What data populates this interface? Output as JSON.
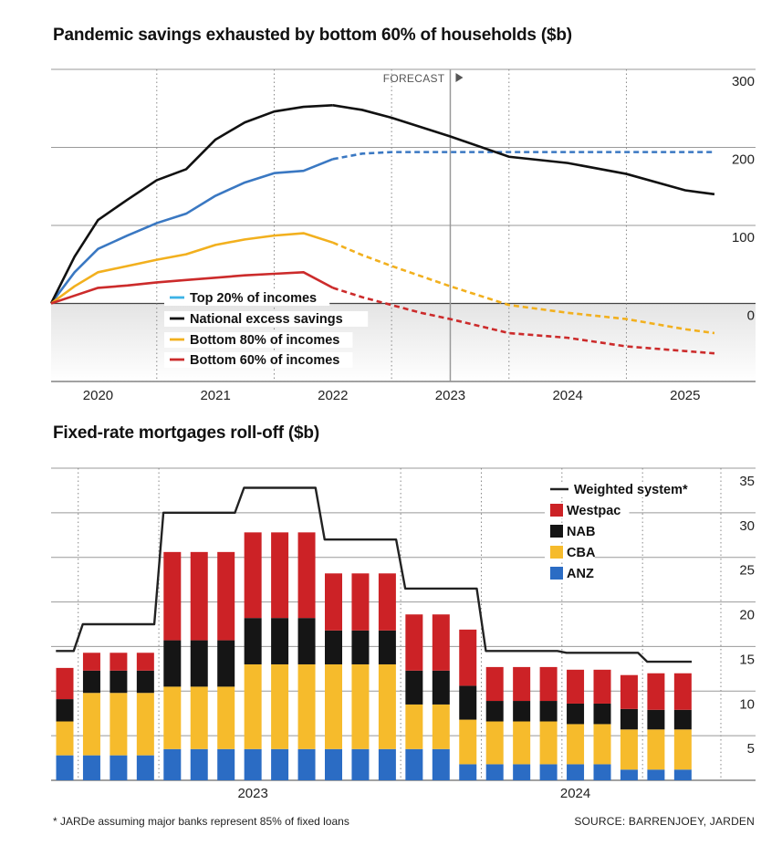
{
  "chart_data": [
    {
      "type": "line",
      "title": "Pandemic savings exhausted by bottom 60% of households ($b)",
      "xlabel": "",
      "ylabel": "",
      "x_ticks": [
        "2020",
        "2021",
        "2022",
        "2023",
        "2024",
        "2025"
      ],
      "y_ticks": [
        "300",
        "200",
        "100",
        "0"
      ],
      "ylim": [
        -100,
        300
      ],
      "xlim": [
        2019.6,
        2025.6
      ],
      "forecast_label": "FORECAST",
      "forecast_start": 2023.0,
      "grid": true,
      "legend_position": "bottom-left",
      "series": [
        {
          "name": "Top 20% of incomes",
          "color": "#3a78c2",
          "points": [
            [
              2019.6,
              0
            ],
            [
              2019.8,
              40
            ],
            [
              2020.0,
              70
            ],
            [
              2020.25,
              87
            ],
            [
              2020.5,
              103
            ],
            [
              2020.75,
              115
            ],
            [
              2021.0,
              138
            ],
            [
              2021.25,
              155
            ],
            [
              2021.5,
              167
            ],
            [
              2021.75,
              170
            ],
            [
              2022.0,
              185
            ],
            [
              2022.25,
              192
            ],
            [
              2022.5,
              194
            ],
            [
              2022.75,
              194
            ],
            [
              2023.0,
              194
            ],
            [
              2023.5,
              194
            ],
            [
              2024.0,
              194
            ],
            [
              2024.5,
              194
            ],
            [
              2025.0,
              194
            ],
            [
              2025.25,
              194
            ]
          ],
          "forecast_from_index": 10
        },
        {
          "name": "National excess savings",
          "color": "#111111",
          "points": [
            [
              2019.6,
              0
            ],
            [
              2019.8,
              60
            ],
            [
              2020.0,
              107
            ],
            [
              2020.25,
              133
            ],
            [
              2020.5,
              158
            ],
            [
              2020.75,
              172
            ],
            [
              2021.0,
              210
            ],
            [
              2021.25,
              232
            ],
            [
              2021.5,
              246
            ],
            [
              2021.75,
              252
            ],
            [
              2022.0,
              254
            ],
            [
              2022.25,
              248
            ],
            [
              2022.5,
              238
            ],
            [
              2022.75,
              226
            ],
            [
              2023.0,
              214
            ],
            [
              2023.5,
              188
            ],
            [
              2024.0,
              180
            ],
            [
              2024.5,
              166
            ],
            [
              2025.0,
              145
            ],
            [
              2025.25,
              140
            ]
          ],
          "forecast_from_index": 10
        },
        {
          "name": "Bottom 80% of incomes",
          "color": "#f2b01e",
          "points": [
            [
              2019.6,
              0
            ],
            [
              2019.8,
              22
            ],
            [
              2020.0,
              40
            ],
            [
              2020.25,
              48
            ],
            [
              2020.5,
              56
            ],
            [
              2020.75,
              63
            ],
            [
              2021.0,
              75
            ],
            [
              2021.25,
              82
            ],
            [
              2021.5,
              87
            ],
            [
              2021.75,
              90
            ],
            [
              2022.0,
              78
            ],
            [
              2022.25,
              62
            ],
            [
              2022.5,
              48
            ],
            [
              2022.75,
              35
            ],
            [
              2023.0,
              22
            ],
            [
              2023.5,
              -2
            ],
            [
              2024.0,
              -12
            ],
            [
              2024.5,
              -20
            ],
            [
              2025.0,
              -33
            ],
            [
              2025.25,
              -38
            ]
          ],
          "forecast_from_index": 10
        },
        {
          "name": "Bottom 60% of incomes",
          "color": "#cc2b2b",
          "points": [
            [
              2019.6,
              0
            ],
            [
              2019.8,
              10
            ],
            [
              2020.0,
              20
            ],
            [
              2020.25,
              23
            ],
            [
              2020.5,
              27
            ],
            [
              2020.75,
              30
            ],
            [
              2021.0,
              33
            ],
            [
              2021.25,
              36
            ],
            [
              2021.5,
              38
            ],
            [
              2021.75,
              40
            ],
            [
              2022.0,
              20
            ],
            [
              2022.25,
              8
            ],
            [
              2022.5,
              -2
            ],
            [
              2022.75,
              -12
            ],
            [
              2023.0,
              -20
            ],
            [
              2023.5,
              -38
            ],
            [
              2024.0,
              -44
            ],
            [
              2024.5,
              -55
            ],
            [
              2025.0,
              -61
            ],
            [
              2025.25,
              -64
            ]
          ],
          "forecast_from_index": 10
        }
      ]
    },
    {
      "type": "bar",
      "stacked": true,
      "title": "Fixed-rate mortgages roll-off ($b)",
      "xlabel": "",
      "ylabel": "",
      "x_group_labels": [
        "2023",
        "2024"
      ],
      "y_ticks": [
        "35",
        "30",
        "25",
        "20",
        "15",
        "10",
        "5"
      ],
      "ylim": [
        0,
        35
      ],
      "grid": true,
      "legend_position": "top-right",
      "categories": [
        "2022-10",
        "2022-11",
        "2022-12",
        "2023-01",
        "2023-02",
        "2023-03",
        "2023-04",
        "2023-05",
        "2023-06",
        "2023-07",
        "2023-08",
        "2023-09",
        "2023-10",
        "2023-11",
        "2023-12",
        "2024-01",
        "2024-02",
        "2024-03",
        "2024-04",
        "2024-05",
        "2024-06",
        "2024-07",
        "2024-08",
        "2024-09"
      ],
      "series": [
        {
          "name": "ANZ",
          "color": "#2b6cc4",
          "values": [
            2.8,
            2.8,
            2.8,
            2.8,
            3.5,
            3.5,
            3.5,
            3.5,
            3.5,
            3.5,
            3.5,
            3.5,
            3.5,
            3.5,
            3.5,
            1.8,
            1.8,
            1.8,
            1.8,
            1.8,
            1.8,
            1.2,
            1.2,
            1.2
          ]
        },
        {
          "name": "CBA",
          "color": "#f6bb2c",
          "values": [
            3.8,
            7.0,
            7.0,
            7.0,
            7.0,
            7.0,
            7.0,
            9.5,
            9.5,
            9.5,
            9.5,
            9.5,
            9.5,
            5.0,
            5.0,
            5.0,
            4.8,
            4.8,
            4.8,
            4.5,
            4.5,
            4.5,
            4.5,
            4.5
          ]
        },
        {
          "name": "NAB",
          "color": "#151515",
          "values": [
            2.5,
            2.5,
            2.5,
            2.5,
            5.2,
            5.2,
            5.2,
            5.2,
            5.2,
            5.2,
            3.8,
            3.8,
            3.8,
            3.8,
            3.8,
            3.8,
            2.3,
            2.3,
            2.3,
            2.3,
            2.3,
            2.3,
            2.2,
            2.2
          ]
        },
        {
          "name": "Westpac",
          "color": "#cc2226",
          "values": [
            3.5,
            2.0,
            2.0,
            2.0,
            9.9,
            9.9,
            9.9,
            9.6,
            9.6,
            9.6,
            6.4,
            6.4,
            6.4,
            6.3,
            6.3,
            6.3,
            3.8,
            3.8,
            3.8,
            3.8,
            3.8,
            3.8,
            4.1,
            4.1
          ]
        }
      ],
      "line_series": {
        "name": "Weighted system*",
        "color": "#222222",
        "values": [
          14.5,
          17.5,
          17.5,
          17.5,
          30.0,
          30.0,
          30.0,
          32.8,
          32.8,
          32.8,
          27.0,
          27.0,
          27.0,
          21.5,
          21.5,
          21.5,
          14.5,
          14.5,
          14.5,
          14.3,
          14.3,
          14.3,
          13.3,
          13.3
        ]
      }
    }
  ],
  "footnote": "* JARDe assuming major banks represent 85% of fixed loans",
  "source": "SOURCE: BARRENJOEY, JARDEN"
}
